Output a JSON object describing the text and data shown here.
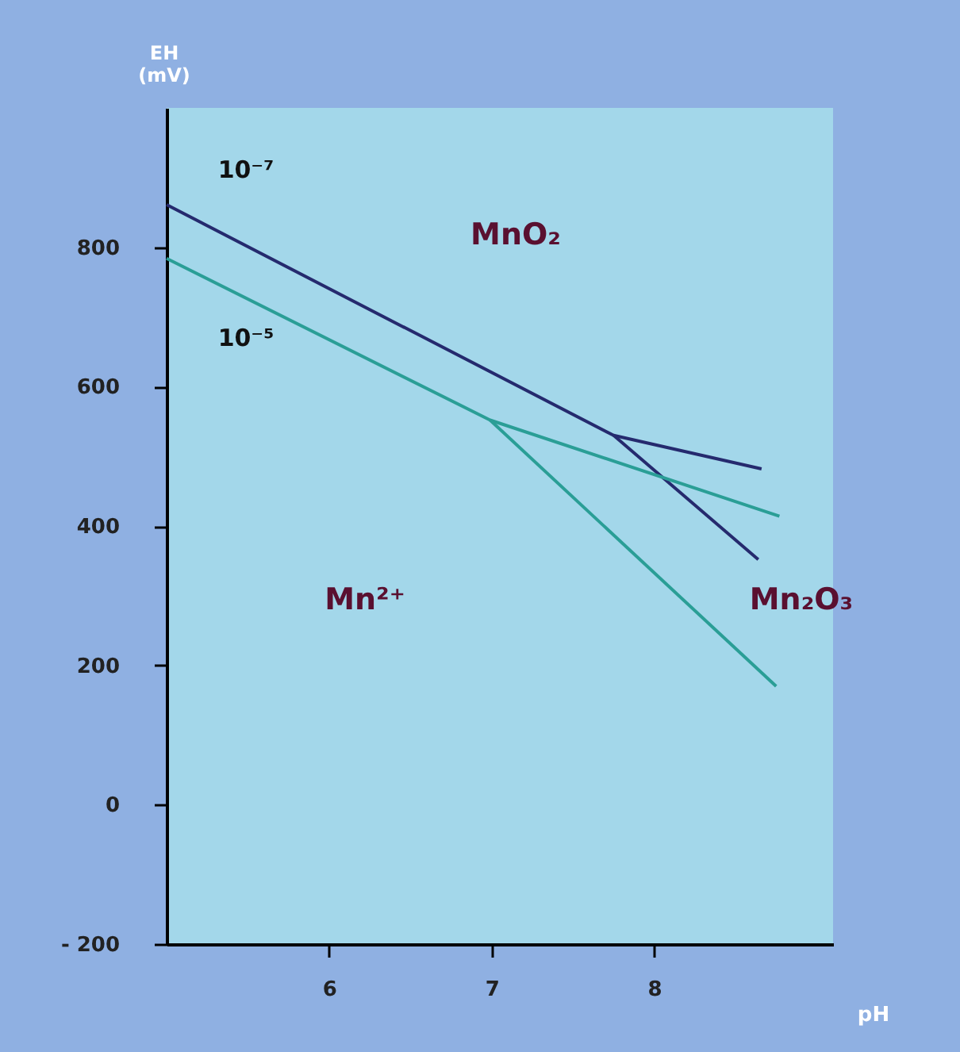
{
  "chart_data": {
    "type": "line",
    "xlabel": "pH",
    "ylabel": "EH (mV)",
    "xlim": [
      5,
      9.1
    ],
    "xticks": [
      6,
      7,
      8
    ],
    "ylim": [
      -200,
      1000
    ],
    "yticks": [
      {
        "value": -200,
        "label": "- 200"
      },
      0,
      200,
      400,
      600,
      800
    ],
    "grid": false,
    "marker": "none",
    "line_style": "solid",
    "series": [
      {
        "name": "10⁻⁷",
        "color": "#252a6e",
        "x": [
          5,
          7.75,
          8.66
        ],
        "values": [
          861,
          530,
          482
        ]
      },
      {
        "color": "#252a6e",
        "x": [
          7.75,
          8.64
        ],
        "values": [
          530,
          352
        ]
      },
      {
        "name": "10⁻⁵",
        "color": "#2a9e96",
        "x": [
          5,
          6.99,
          8.77
        ],
        "values": [
          784,
          552,
          414
        ]
      },
      {
        "color": "#2a9e96",
        "x": [
          6.99,
          8.75
        ],
        "values": [
          552,
          170
        ]
      }
    ],
    "annotations": [
      "MnO₂",
      "Mn²⁺",
      "Mn₂O₃"
    ]
  }
}
